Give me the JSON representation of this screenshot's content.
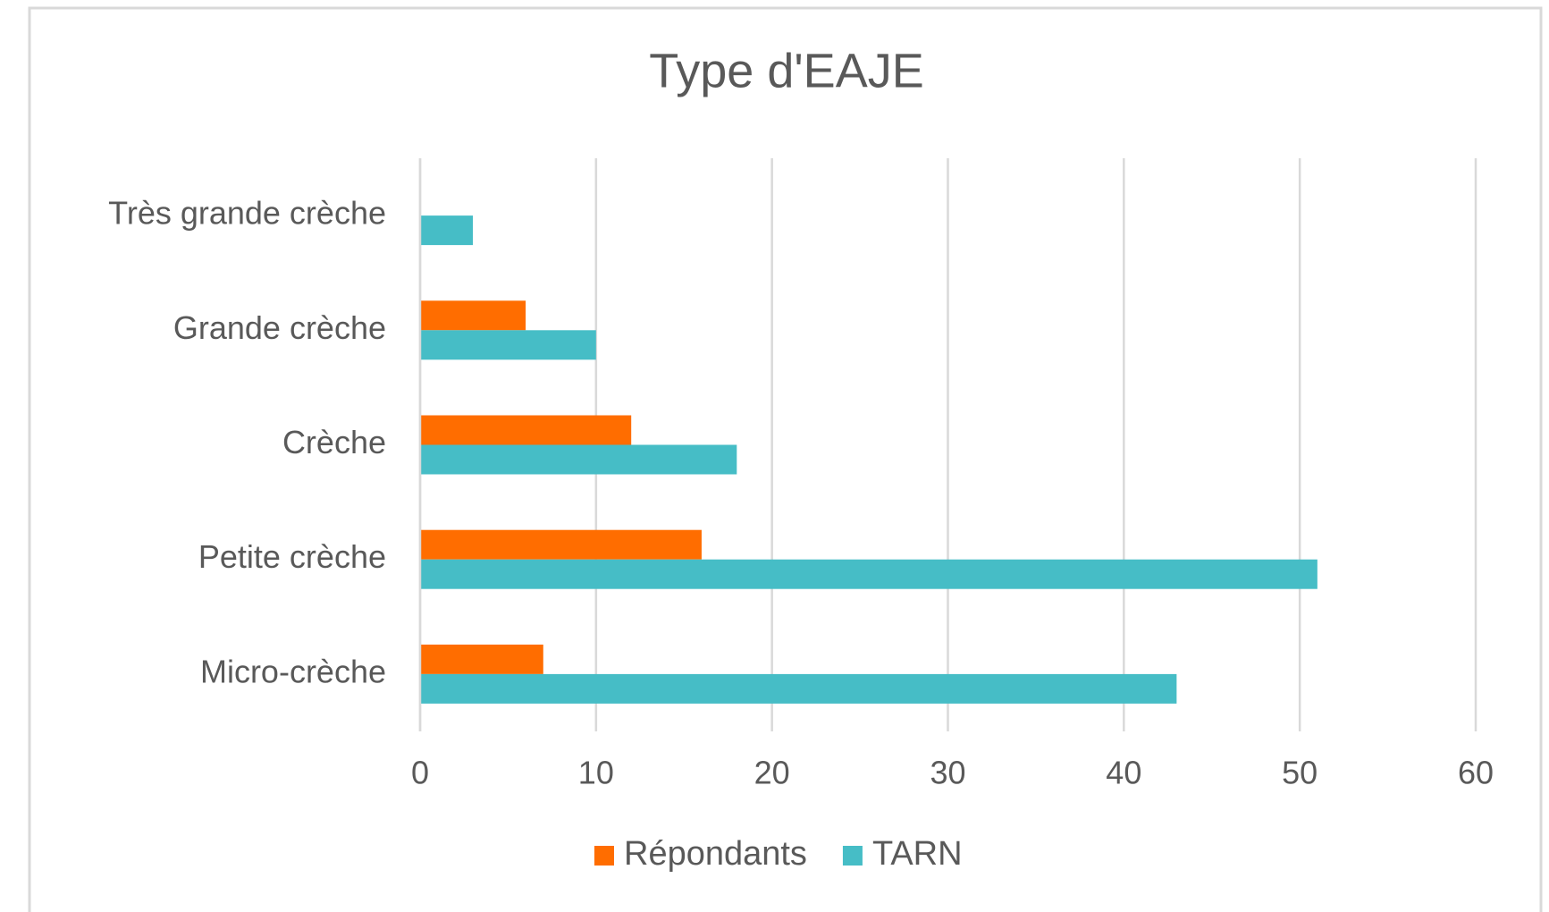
{
  "chart_data": {
    "type": "hbar",
    "title": "Type d'EAJE",
    "categories": [
      "Très grande crèche",
      "Grande crèche",
      "Crèche",
      "Petite crèche",
      "Micro-crèche"
    ],
    "series": [
      {
        "name": "Répondants",
        "color": "#ff6d00",
        "values": [
          0,
          6,
          12,
          16,
          7
        ]
      },
      {
        "name": "TARN",
        "color": "#46bdc6",
        "values": [
          3,
          10,
          18,
          51,
          43
        ]
      }
    ],
    "xlim": [
      0,
      60
    ],
    "xticks": [
      0,
      10,
      20,
      30,
      40,
      50,
      60
    ],
    "grid": true,
    "legend": "bottom"
  }
}
